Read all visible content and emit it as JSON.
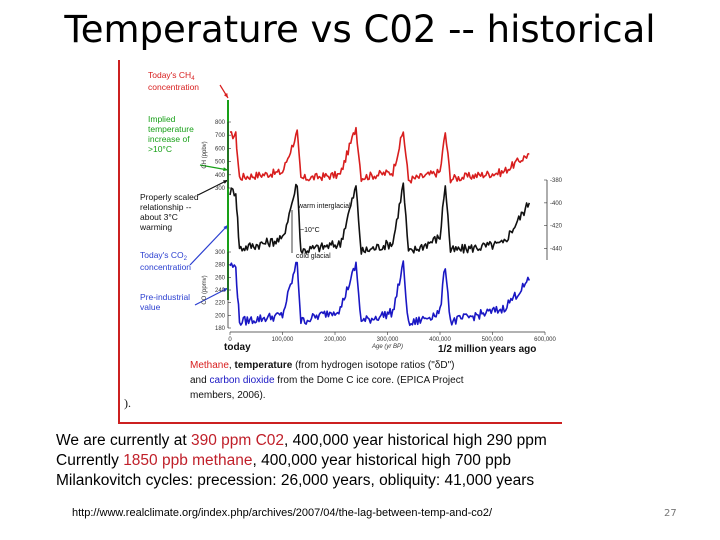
{
  "slide": {
    "title": "Temperature vs C02 -- historical",
    "page_number": "27",
    "source_url": "http://www.realclimate.org/index.php/archives/2007/04/the-lag-between-temp-and-co2/",
    "body_lines": [
      {
        "before": "We are currently at ",
        "highlight": "390 ppm C02",
        "after": ", 400,000 year historical high 290 ppm"
      },
      {
        "before": "Currently  ",
        "highlight": "1850 ppb methane",
        "after": ",       400,000 year historical high 700 ppb"
      },
      {
        "before": "Milankovitch cycles:  precession: 26,000 years, obliquity: 41,000 years",
        "highlight": "",
        "after": ""
      }
    ]
  },
  "figure": {
    "annotations": {
      "ch4_today": [
        "Today's CH",
        "concentration"
      ],
      "implied": [
        "Implied",
        "temperature",
        "increase of",
        ">10°C"
      ],
      "scaled": [
        "Properly scaled",
        "relationship --",
        "about 3°C",
        "warming"
      ],
      "co2_today": [
        "Today's CO",
        "concentration"
      ],
      "preindustrial": [
        "Pre-industrial",
        "value"
      ],
      "warm_interglacial": "warm interglacial",
      "cold_glacial": "cold glacial",
      "tilde_ten": "~10°C",
      "today_label": "today",
      "half_million": "1/2 million years ago",
      "x_axis_title": "Age (yr BP)",
      "ch4_unit": "CH",
      "co2_unit": "CO",
      "dd_unit": "δD/ice (‰)",
      "truncated_ref": ")."
    },
    "caption": {
      "methane": "Methane",
      "temperature": "temperature",
      "mid1": " (from hydrogen isotope ratios (\"δD\")",
      "and": "and ",
      "carbon_dioxide": "carbon dioxide",
      "mid2": " from the Dome C ice core.  (EPICA Project",
      "end": "members, 2006)."
    },
    "colors": {
      "ch4": "#d81e1e",
      "temperature": "#111111",
      "co2": "#1a17c4",
      "annotation": "#2b3fd0",
      "annotation_green": "#18a018",
      "annotation_red": "#d81e1e"
    }
  },
  "chart_data": [
    {
      "type": "line",
      "name": "CH4",
      "ylabel": "CH (ppbv)",
      "ylim": [
        300,
        800
      ],
      "yticks": [
        300,
        400,
        500,
        600,
        700,
        800
      ],
      "x": [
        0,
        11000,
        18000,
        100000,
        128000,
        135000,
        210000,
        240000,
        250000,
        310000,
        330000,
        340000,
        400000,
        410000,
        420000,
        520000,
        570000
      ],
      "values": [
        700,
        700,
        380,
        420,
        720,
        370,
        400,
        760,
        380,
        420,
        730,
        360,
        420,
        720,
        370,
        420,
        560
      ]
    },
    {
      "type": "line",
      "name": "δD",
      "ylabel": "δD/ice (‰)",
      "ylim": [
        -450,
        -380
      ],
      "yticks": [
        -380,
        -400,
        -420,
        -440
      ],
      "x": [
        0,
        11000,
        18000,
        100000,
        128000,
        135000,
        210000,
        240000,
        250000,
        310000,
        330000,
        340000,
        400000,
        410000,
        420000,
        520000,
        570000
      ],
      "values": [
        -390,
        -390,
        -440,
        -432,
        -382,
        -442,
        -436,
        -386,
        -443,
        -435,
        -384,
        -444,
        -430,
        -383,
        -442,
        -436,
        -400
      ]
    },
    {
      "type": "line",
      "name": "CO2",
      "ylabel": "CO (ppmv)",
      "ylim": [
        180,
        300
      ],
      "yticks": [
        180,
        200,
        220,
        240,
        260,
        280,
        300
      ],
      "x": [
        0,
        11000,
        18000,
        100000,
        128000,
        135000,
        210000,
        240000,
        250000,
        310000,
        330000,
        340000,
        400000,
        410000,
        420000,
        520000,
        570000
      ],
      "values": [
        280,
        275,
        190,
        200,
        285,
        190,
        210,
        280,
        190,
        205,
        280,
        185,
        205,
        280,
        190,
        210,
        255
      ]
    }
  ],
  "x_axis": {
    "ticks": [
      "0",
      "100,000",
      "200,000",
      "300,000",
      "400,000",
      "500,000",
      "600,000"
    ]
  }
}
